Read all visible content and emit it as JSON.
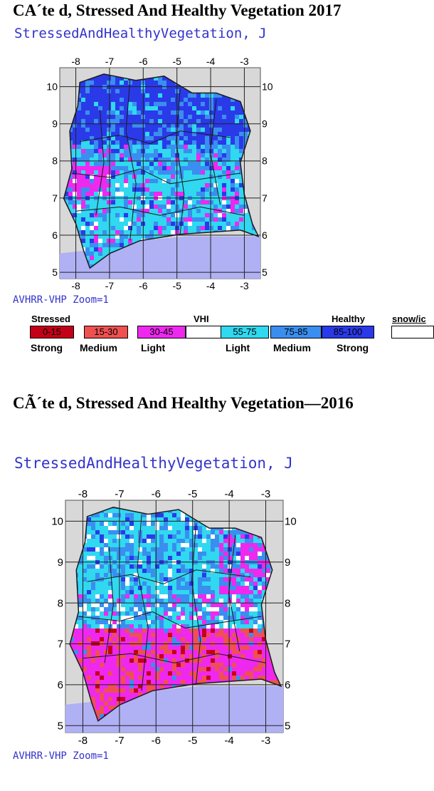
{
  "heading_2017": "CA´te d, Stressed And Healthy Vegetation   2017",
  "heading_2016": "CÃ´te d, Stressed And Healthy Vegetation—2016",
  "map_title": "StressedAndHealthyVegetation, J",
  "map_footer": "AVHRR-VHP Zoom=1",
  "longitude_ticks": [
    "-8",
    "-7",
    "-6",
    "-5",
    "-4",
    "-3"
  ],
  "latitude_ticks": [
    "10",
    "9",
    "8",
    "7",
    "6",
    "5"
  ],
  "legend": {
    "stressed_label": "Stressed",
    "vhi_label": "VHI",
    "healthy_label": "Healthy",
    "snow_label": "snow/ic",
    "classes": [
      {
        "range": "0-15",
        "color": "#c40018"
      },
      {
        "range": "15-30",
        "color": "#ef5050"
      },
      {
        "range": "30-45",
        "color": "#ef28ef"
      },
      {
        "range": "",
        "color": "#ffffff"
      },
      {
        "range": "55-75",
        "color": "#30d8f0"
      },
      {
        "range": "75-85",
        "color": "#3a8ef0"
      },
      {
        "range": "85-100",
        "color": "#2a3ae8"
      }
    ],
    "intensity": {
      "strong": "Strong",
      "medium": "Medium",
      "light": "Light"
    }
  },
  "colors": {
    "water": "#b0b0f4",
    "land_frame": "#d8d8d8",
    "map_text": "#3333cc"
  }
}
